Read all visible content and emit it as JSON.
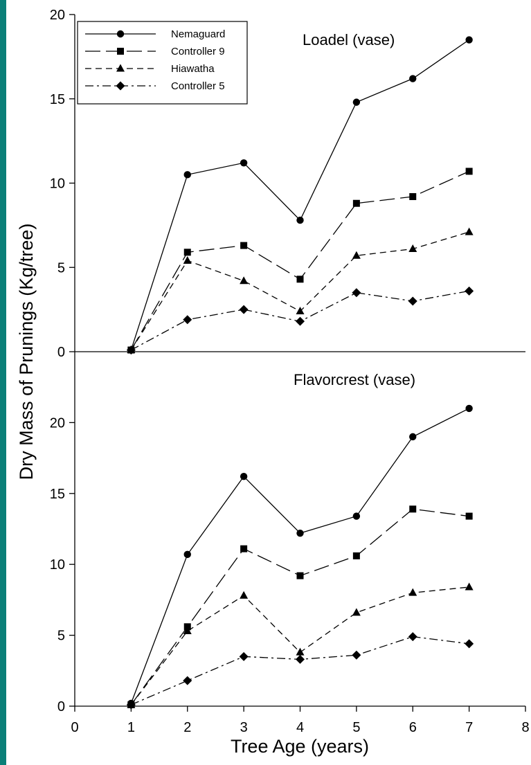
{
  "chart_data": [
    {
      "type": "line",
      "title": "Loadel (vase)",
      "x": [
        1,
        2,
        3,
        4,
        5,
        6,
        7
      ],
      "xlim": [
        0,
        8
      ],
      "ylim": [
        0,
        20
      ],
      "yticks": [
        0,
        5,
        10,
        15,
        20
      ],
      "ylabel": "Dry Mass of Prunings (Kg/tree)",
      "legend_position": "top-left",
      "grid": false,
      "series": [
        {
          "name": "Nemaguard",
          "marker": "circle",
          "dash": "solid",
          "values": [
            0.1,
            10.5,
            11.2,
            7.8,
            14.8,
            16.2,
            18.5
          ]
        },
        {
          "name": "Controller 9",
          "marker": "square",
          "dash": "longdash",
          "values": [
            0.1,
            5.9,
            6.3,
            4.3,
            8.8,
            9.2,
            10.7
          ]
        },
        {
          "name": "Hiawatha",
          "marker": "triangle",
          "dash": "shortdash",
          "values": [
            0.1,
            5.4,
            4.2,
            2.4,
            5.7,
            6.1,
            7.1
          ]
        },
        {
          "name": "Controller 5",
          "marker": "diamond",
          "dash": "dashdot",
          "values": [
            0.1,
            1.9,
            2.5,
            1.8,
            3.5,
            3.0,
            3.6
          ]
        }
      ]
    },
    {
      "type": "line",
      "title": "Flavorcrest (vase)",
      "x": [
        1,
        2,
        3,
        4,
        5,
        6,
        7
      ],
      "xlim": [
        0,
        8
      ],
      "ylim": [
        0,
        25
      ],
      "yticks": [
        0,
        5,
        10,
        15,
        20
      ],
      "xticks": [
        0,
        1,
        2,
        3,
        4,
        5,
        6,
        7,
        8
      ],
      "xlabel": "Tree Age (years)",
      "grid": false,
      "series": [
        {
          "name": "Nemaguard",
          "marker": "circle",
          "dash": "solid",
          "values": [
            0.2,
            10.7,
            16.2,
            12.2,
            13.4,
            19.0,
            21.0
          ]
        },
        {
          "name": "Controller 9",
          "marker": "square",
          "dash": "longdash",
          "values": [
            0.1,
            5.6,
            11.1,
            9.2,
            10.6,
            13.9,
            13.4
          ]
        },
        {
          "name": "Hiawatha",
          "marker": "triangle",
          "dash": "shortdash",
          "values": [
            0.1,
            5.3,
            7.8,
            3.8,
            6.6,
            8.0,
            8.4
          ]
        },
        {
          "name": "Controller 5",
          "marker": "diamond",
          "dash": "dashdot",
          "values": [
            0.1,
            1.8,
            3.5,
            3.3,
            3.6,
            4.9,
            4.4
          ]
        }
      ]
    }
  ]
}
